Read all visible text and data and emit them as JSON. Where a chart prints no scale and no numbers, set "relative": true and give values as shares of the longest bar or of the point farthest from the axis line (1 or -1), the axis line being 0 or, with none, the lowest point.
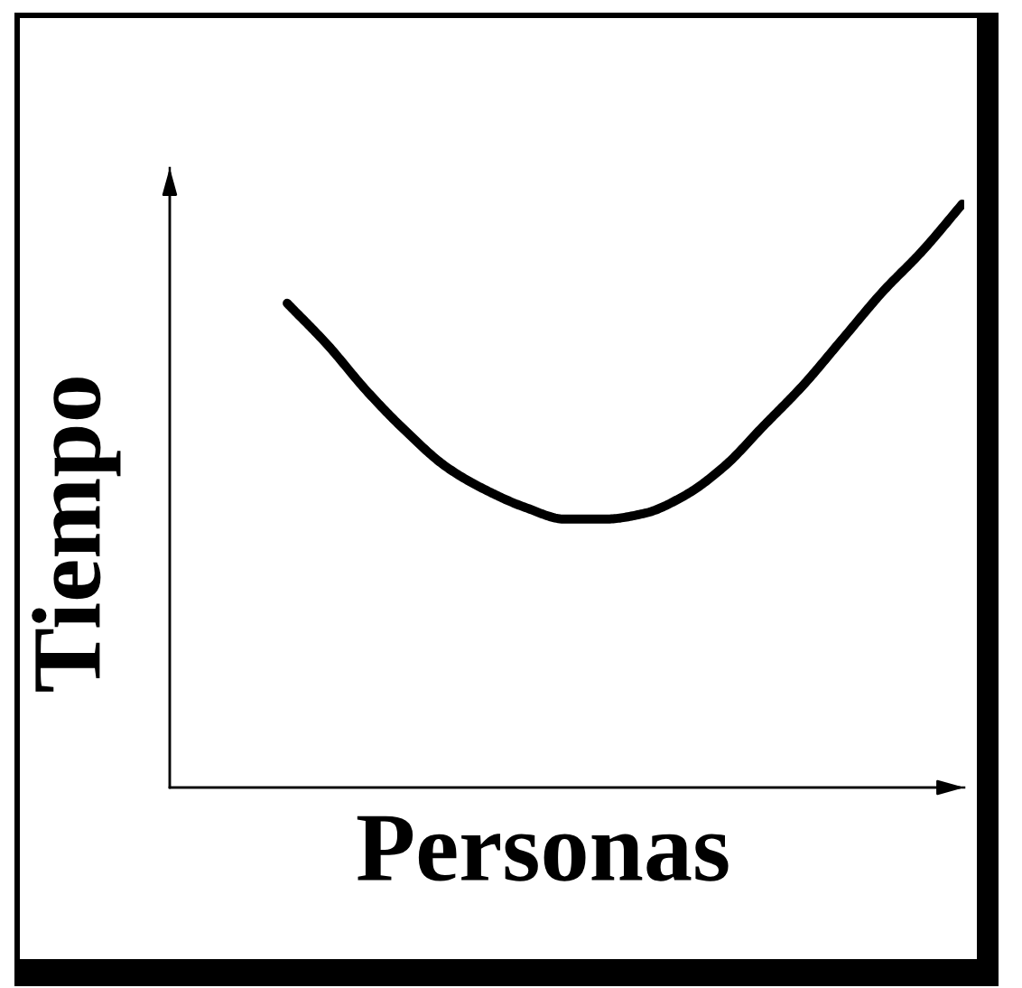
{
  "chart_data": {
    "type": "line",
    "relative": true,
    "xlabel": "Personas",
    "ylabel": "Tiempo",
    "categories": [
      null,
      null,
      null,
      null,
      null,
      null,
      null,
      null,
      null,
      null,
      null,
      null,
      null,
      null,
      null,
      null,
      null,
      null
    ],
    "series": [
      {
        "color": "#000000",
        "values": [
          0.83,
          0.76,
          0.68,
          0.61,
          0.55,
          0.51,
          0.48,
          0.46,
          0.46,
          0.47,
          0.5,
          0.55,
          0.62,
          0.69,
          0.77,
          0.85,
          0.92,
          1.0
        ]
      }
    ]
  }
}
